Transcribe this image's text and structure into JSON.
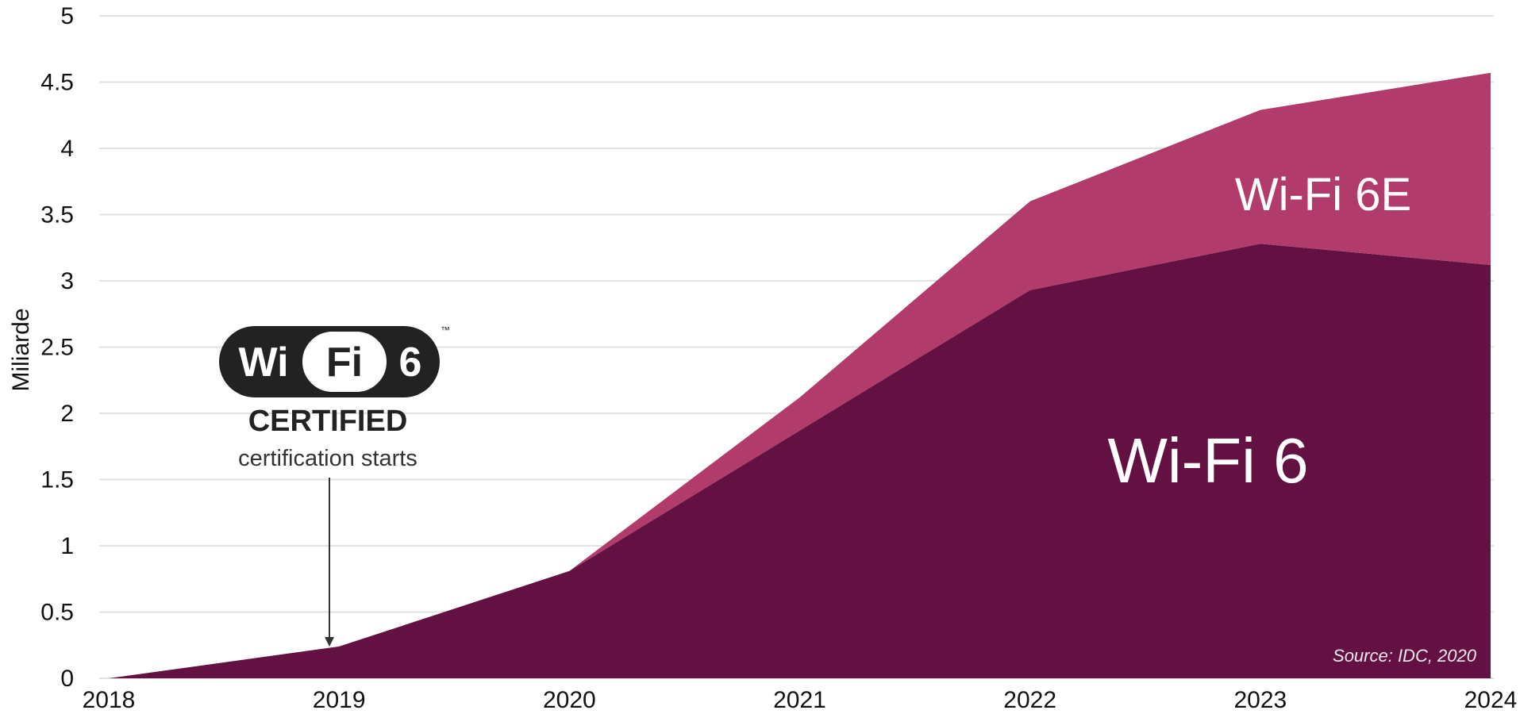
{
  "chart_data": {
    "type": "area",
    "stacked": true,
    "ylabel": "Miliarde",
    "xlabel": "",
    "x": [
      "2018",
      "2019",
      "2020",
      "2021",
      "2022",
      "2023",
      "2024"
    ],
    "xlim": [
      2018,
      2024
    ],
    "ylim": [
      0,
      5
    ],
    "yticks": [
      "0",
      "0.5",
      "1",
      "1.5",
      "2",
      "2.5",
      "3",
      "3.5",
      "4",
      "4.5",
      "5"
    ],
    "grid": true,
    "series": [
      {
        "name": "Wi-Fi 6",
        "values": [
          0,
          0.24,
          0.81,
          1.87,
          2.93,
          3.28,
          3.12
        ],
        "color": "#631142"
      },
      {
        "name": "Wi-Fi 6E",
        "values": [
          0,
          0,
          0,
          0.25,
          0.67,
          1.01,
          1.45
        ],
        "color": "#b13b6b"
      }
    ],
    "annotation": {
      "logo_text": {
        "wi": "Wi",
        "fi": "Fi",
        "six": "6",
        "tm": "™"
      },
      "logo_caption": "CERTIFIED",
      "text": "certification starts",
      "x": "2019"
    },
    "source": "Source: IDC, 2020"
  }
}
